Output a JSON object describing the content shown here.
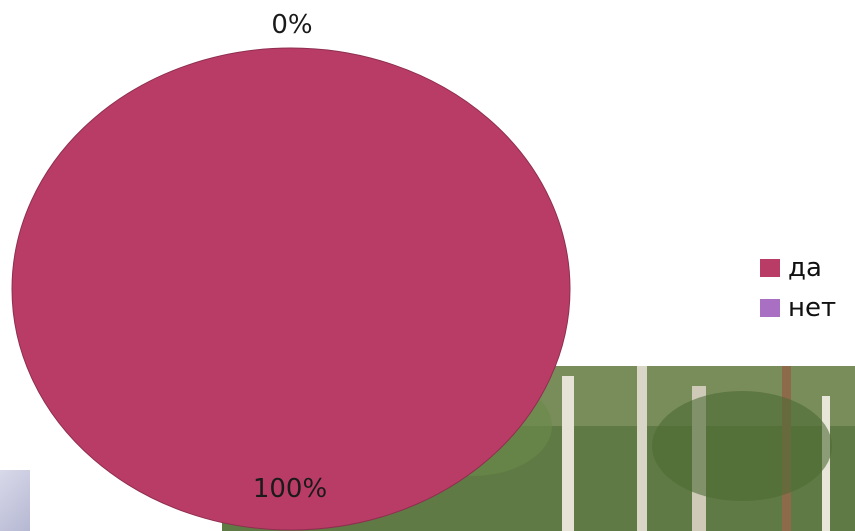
{
  "chart_data": {
    "type": "pie",
    "categories": [
      "да",
      "нет"
    ],
    "values": [
      100,
      0
    ],
    "data_labels": [
      "100%",
      "0%"
    ],
    "colors": [
      "#b93c67",
      "#a86fc2"
    ],
    "legend_position": "right"
  },
  "legend": {
    "items": [
      {
        "label": "да",
        "color": "#b93c67"
      },
      {
        "label": "нет",
        "color": "#a86fc2"
      }
    ]
  }
}
